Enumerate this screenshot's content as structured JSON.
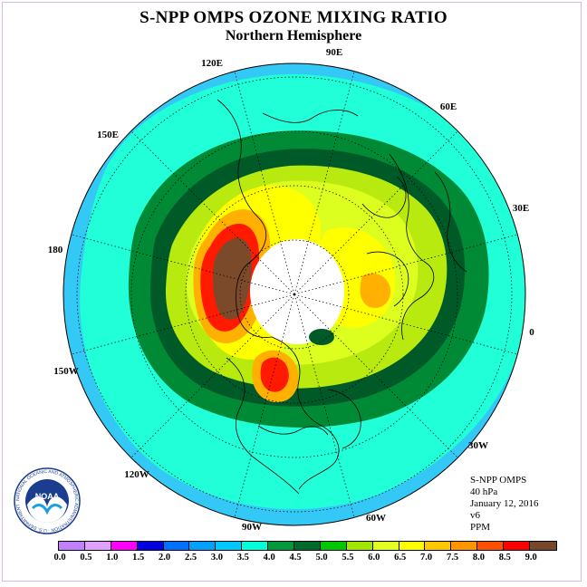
{
  "title": "S-NPP OMPS OZONE MIXING RATIO",
  "subtitle": "Northern Hemisphere",
  "info": {
    "instrument": "S-NPP OMPS",
    "level": "40 hPa",
    "date": "January 12, 2016",
    "version": "v6",
    "units": "PPM"
  },
  "longitude_labels": [
    {
      "key": "90E",
      "text": "90E"
    },
    {
      "key": "60E",
      "text": "60E"
    },
    {
      "key": "120E",
      "text": "120E"
    },
    {
      "key": "150E",
      "text": "150E"
    },
    {
      "key": "30E",
      "text": "30E"
    },
    {
      "key": "180",
      "text": "180"
    },
    {
      "key": "0",
      "text": "0"
    },
    {
      "key": "150W",
      "text": "150W"
    },
    {
      "key": "30W",
      "text": "30W"
    },
    {
      "key": "120W",
      "text": "120W"
    },
    {
      "key": "60W",
      "text": "60W"
    },
    {
      "key": "90W",
      "text": "90W"
    }
  ],
  "colorbar": {
    "ticks": [
      "0.0",
      "0.5",
      "1.0",
      "1.5",
      "2.0",
      "2.5",
      "3.0",
      "3.5",
      "4.0",
      "4.5",
      "5.0",
      "5.5",
      "6.0",
      "6.5",
      "7.0",
      "7.5",
      "8.0",
      "8.5",
      "9.0"
    ],
    "colors": [
      "#c080ff",
      "#e0a0ff",
      "#ff00ff",
      "#0000e0",
      "#0070ff",
      "#00a0ff",
      "#00c8ff",
      "#00ffd8",
      "#009a3a",
      "#006a2a",
      "#00c800",
      "#a0e600",
      "#e0ff20",
      "#ffff00",
      "#ffc800",
      "#ff9600",
      "#ff5000",
      "#ff0000",
      "#784628"
    ]
  },
  "logo": {
    "text": "NOAA",
    "ring_text": "NATIONAL OCEANIC AND ATMOSPHERIC ADMINISTRATION · U.S. DEPARTMENT OF COMMERCE"
  },
  "map_colors": {
    "ocean_outer": "#33c8f5",
    "cyan": "#20ffd8",
    "dark_green": "#008a35",
    "darker_green": "#005a28",
    "light_green": "#b8ea10",
    "yellow_green": "#dcff20",
    "yellow": "#ffff00",
    "orange": "#ffb000",
    "red": "#ff1a00",
    "brown": "#7a4a2a",
    "polar_night": "#ffffff"
  }
}
